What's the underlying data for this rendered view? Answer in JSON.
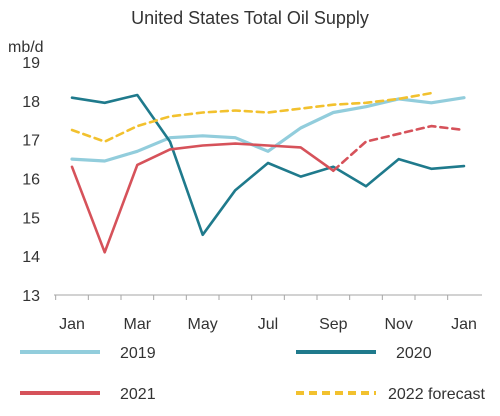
{
  "chart_data": {
    "type": "line",
    "title": "United States Total Oil Supply",
    "ylabel": "mb/d",
    "xlabel": "",
    "ylim": [
      13,
      19
    ],
    "yticks": [
      13,
      14,
      15,
      16,
      17,
      18,
      19
    ],
    "xticks": [
      "Jan",
      "Mar",
      "May",
      "Jul",
      "Sep",
      "Nov",
      "Jan"
    ],
    "grid": false,
    "legend_position": "bottom",
    "series": [
      {
        "name": "2019",
        "color": "#92cddc",
        "dash": false,
        "x": [
          1,
          2,
          3,
          4,
          5,
          6,
          7,
          8,
          9,
          10,
          11,
          12,
          13
        ],
        "values": [
          16.5,
          16.45,
          16.7,
          17.05,
          17.1,
          17.05,
          16.7,
          17.3,
          17.7,
          17.85,
          18.05,
          17.95,
          18.08
        ]
      },
      {
        "name": "2020",
        "color": "#1f7a8c",
        "dash": false,
        "x": [
          1,
          2,
          3,
          4,
          5,
          6,
          7,
          8,
          9,
          10,
          11,
          12,
          13
        ],
        "values": [
          18.08,
          17.95,
          18.15,
          16.95,
          14.55,
          15.7,
          16.4,
          16.05,
          16.3,
          15.8,
          16.5,
          16.25,
          16.32
        ]
      },
      {
        "name": "2021",
        "color": "#d6525a",
        "dash": false,
        "x": [
          1,
          2,
          3,
          4,
          5,
          6,
          7,
          8,
          9
        ],
        "values": [
          16.3,
          14.1,
          16.35,
          16.75,
          16.85,
          16.9,
          16.85,
          16.8,
          16.2
        ]
      },
      {
        "name": "2021 forecast continuation",
        "color": "#d6525a",
        "dash": true,
        "legend": false,
        "x": [
          9,
          10,
          11,
          12,
          13
        ],
        "values": [
          16.2,
          16.95,
          17.15,
          17.35,
          17.25
        ]
      },
      {
        "name": "2022 forecast",
        "color": "#f2c12e",
        "dash": true,
        "x": [
          1,
          2,
          3,
          4,
          5,
          6,
          7,
          8,
          9,
          10,
          11,
          12
        ],
        "values": [
          17.25,
          16.95,
          17.35,
          17.6,
          17.7,
          17.75,
          17.7,
          17.8,
          17.9,
          17.95,
          18.05,
          18.2
        ]
      }
    ]
  }
}
